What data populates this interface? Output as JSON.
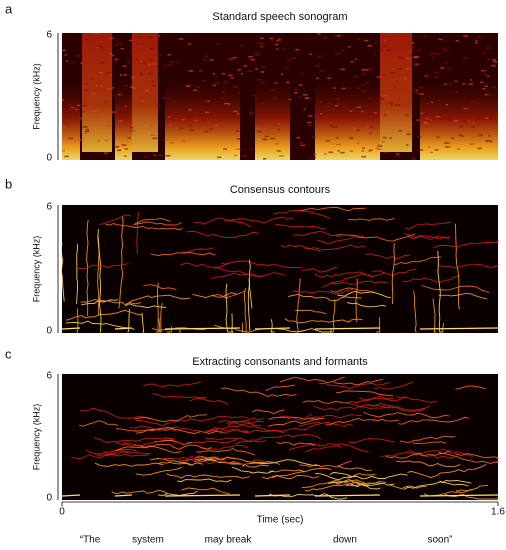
{
  "panels": [
    {
      "letter": "a",
      "title": "Standard speech sonogram",
      "ylabel": "Frequency (kHz)",
      "yticks": [
        "6",
        "0"
      ]
    },
    {
      "letter": "b",
      "title": "Consensus contours",
      "ylabel": "Frequency (kHz)",
      "yticks": [
        "6",
        "0"
      ]
    },
    {
      "letter": "c",
      "title": "Extracting consonants and formants",
      "ylabel": "Frequency (kHz)",
      "yticks": [
        "6",
        "0"
      ]
    }
  ],
  "xaxis": {
    "label": "Time (sec)",
    "ticks": [
      "0",
      "1.6"
    ]
  },
  "words": [
    "“The",
    "system",
    "may break",
    "down",
    "soon”"
  ]
}
